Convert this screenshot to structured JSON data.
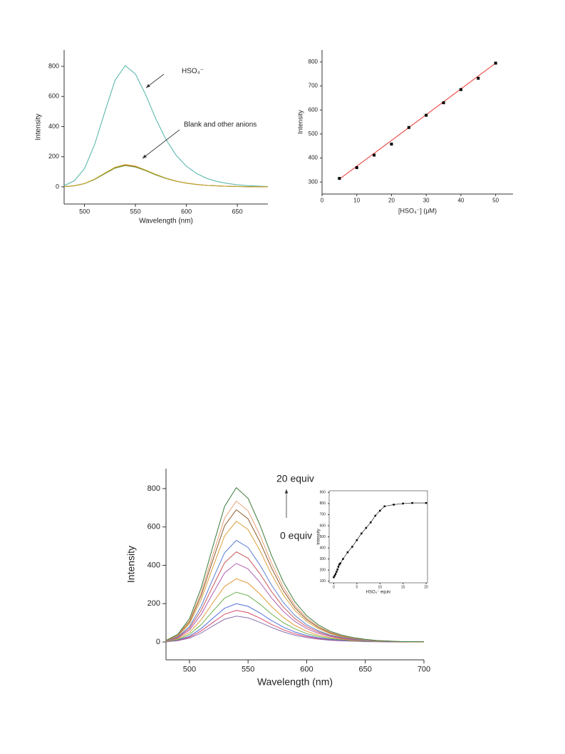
{
  "chart_data": [
    {
      "type": "line",
      "xlabel": "Wavelength (nm)",
      "ylabel": "Intensity",
      "xlim": [
        480,
        680
      ],
      "ylim": [
        -114,
        909
      ],
      "xticks": [
        500,
        550,
        600,
        650
      ],
      "yticks": [
        0,
        200,
        400,
        600,
        800
      ],
      "x": [
        480,
        490,
        500,
        510,
        520,
        530,
        540,
        550,
        560,
        570,
        580,
        590,
        600,
        610,
        620,
        630,
        640,
        650,
        660,
        670,
        680
      ],
      "series": [
        {
          "color": "#4fb3a8",
          "values": [
            8,
            40,
            121,
            282,
            499,
            708,
            805,
            749,
            612,
            451,
            314,
            209,
            137,
            89,
            56,
            36,
            23,
            14,
            8,
            5,
            2
          ]
        },
        {
          "color": "#d8602a",
          "values": [
            1,
            7,
            22,
            51,
            90,
            128,
            145,
            135,
            110,
            81,
            57,
            38,
            25,
            16,
            10,
            7,
            4,
            2,
            1,
            1,
            0
          ]
        },
        {
          "color": "#6a9a3a",
          "values": [
            1,
            7,
            21,
            49,
            87,
            124,
            141,
            131,
            107,
            79,
            55,
            37,
            24,
            15,
            10,
            6,
            4,
            2,
            1,
            1,
            0
          ]
        },
        {
          "color": "#c9a227",
          "values": [
            2,
            8,
            22,
            52,
            92,
            130,
            148,
            138,
            112,
            83,
            58,
            38,
            25,
            16,
            10,
            7,
            4,
            3,
            1,
            1,
            0
          ]
        }
      ],
      "annotations": [
        {
          "text": "HSO₄⁻"
        },
        {
          "text": "Blank and other anions"
        }
      ]
    },
    {
      "type": "scatter",
      "xlabel": "[HSO₄⁻] (μM)",
      "ylabel": "Intensity",
      "xlim": [
        0,
        55
      ],
      "ylim": [
        250,
        850
      ],
      "xticks": [
        0,
        10,
        20,
        30,
        40,
        50
      ],
      "yticks": [
        300,
        400,
        500,
        600,
        700,
        800
      ],
      "x": [
        5,
        10,
        15,
        20,
        25,
        30,
        35,
        40,
        45,
        50
      ],
      "values": [
        315,
        360,
        412,
        458,
        527,
        578,
        630,
        685,
        732,
        795
      ],
      "color": "#000000",
      "fit": {
        "x": [
          5,
          50
        ],
        "values": [
          312,
          795
        ],
        "color": "#e8322d"
      }
    },
    {
      "type": "line",
      "xlabel": "Wavelength (nm)",
      "ylabel": "Intensity",
      "xlim": [
        480,
        700
      ],
      "ylim": [
        -93,
        904
      ],
      "xticks": [
        500,
        550,
        600,
        650,
        700
      ],
      "yticks": [
        0,
        200,
        400,
        600,
        800
      ],
      "x": [
        480,
        490,
        500,
        510,
        520,
        530,
        540,
        550,
        560,
        570,
        580,
        590,
        600,
        610,
        620,
        630,
        640,
        650,
        660,
        670,
        680,
        690,
        700
      ],
      "series": [
        {
          "color": "#8a6fb0",
          "values": [
            1,
            7,
            20,
            47,
            84,
            119,
            135,
            126,
            103,
            76,
            53,
            35,
            23,
            15,
            9,
            6,
            4,
            2,
            1,
            1,
            0,
            0,
            0
          ]
        },
        {
          "color": "#d94b6b",
          "values": [
            2,
            8,
            25,
            58,
            102,
            145,
            165,
            153,
            125,
            92,
            64,
            43,
            28,
            18,
            12,
            7,
            5,
            3,
            2,
            1,
            0,
            0,
            0
          ]
        },
        {
          "color": "#4f6fd9",
          "values": [
            2,
            10,
            30,
            70,
            124,
            176,
            200,
            186,
            152,
            112,
            78,
            52,
            34,
            22,
            14,
            9,
            6,
            3,
            2,
            1,
            1,
            0,
            0
          ]
        },
        {
          "color": "#6ab04c",
          "values": [
            3,
            13,
            39,
            91,
            161,
            229,
            260,
            242,
            198,
            146,
            101,
            68,
            44,
            29,
            18,
            12,
            7,
            4,
            3,
            2,
            1,
            1,
            0
          ]
        },
        {
          "color": "#e39a3b",
          "values": [
            3,
            17,
            50,
            116,
            205,
            290,
            330,
            307,
            251,
            185,
            129,
            86,
            56,
            36,
            23,
            15,
            9,
            6,
            3,
            2,
            1,
            1,
            0
          ]
        },
        {
          "color": "#b05fb0",
          "values": [
            4,
            21,
            62,
            144,
            254,
            361,
            410,
            381,
            312,
            230,
            160,
            107,
            70,
            45,
            29,
            18,
            11,
            7,
            4,
            2,
            1,
            1,
            0
          ]
        },
        {
          "color": "#c95a5a",
          "values": [
            5,
            24,
            71,
            165,
            291,
            414,
            470,
            437,
            357,
            263,
            183,
            122,
            80,
            52,
            33,
            21,
            13,
            8,
            5,
            3,
            1,
            1,
            0
          ]
        },
        {
          "color": "#5a7fd1",
          "values": [
            5,
            27,
            80,
            186,
            329,
            466,
            530,
            493,
            403,
            297,
            207,
            138,
            90,
            58,
            37,
            24,
            15,
            9,
            5,
            3,
            2,
            1,
            1
          ]
        },
        {
          "color": "#d9a03b",
          "values": [
            6,
            32,
            95,
            221,
            391,
            554,
            630,
            586,
            479,
            353,
            246,
            164,
            107,
            69,
            44,
            28,
            18,
            11,
            6,
            4,
            2,
            1,
            1
          ]
        },
        {
          "color": "#8b5a2b",
          "values": [
            7,
            35,
            104,
            242,
            428,
            607,
            690,
            642,
            524,
            386,
            269,
            179,
            117,
            76,
            48,
            31,
            19,
            12,
            7,
            4,
            2,
            1,
            1
          ]
        },
        {
          "color": "#e8a07a",
          "values": [
            7,
            37,
            110,
            257,
            456,
            647,
            735,
            684,
            559,
            412,
            287,
            191,
            125,
            81,
            51,
            33,
            21,
            12,
            7,
            4,
            2,
            1,
            1
          ]
        },
        {
          "color": "#3a7a3a",
          "values": [
            8,
            40,
            121,
            282,
            499,
            708,
            805,
            749,
            612,
            451,
            314,
            209,
            137,
            89,
            56,
            36,
            23,
            14,
            8,
            5,
            2,
            2,
            1
          ]
        }
      ],
      "annotations": [
        {
          "text": "20 equiv"
        },
        {
          "text": "0 equiv"
        }
      ]
    },
    {
      "type": "scatter",
      "xlabel": "HSO₄⁻ equiv",
      "ylabel": "Intensity",
      "xlim": [
        -1,
        20.3
      ],
      "ylim": [
        85,
        915
      ],
      "xticks": [
        0,
        5,
        10,
        15,
        20
      ],
      "yticks": [
        100,
        200,
        300,
        400,
        500,
        600,
        700,
        800,
        900
      ],
      "x": [
        0,
        0.2,
        0.4,
        0.6,
        0.8,
        1,
        1.2,
        1.4,
        2,
        3,
        4,
        5,
        6,
        7,
        8,
        9,
        10,
        11,
        13,
        15,
        17,
        20
      ],
      "values": [
        135,
        150,
        165,
        185,
        205,
        230,
        250,
        260,
        300,
        360,
        410,
        470,
        530,
        580,
        630,
        690,
        735,
        775,
        790,
        800,
        805,
        805
      ],
      "color": "#000000",
      "connect": true
    }
  ]
}
